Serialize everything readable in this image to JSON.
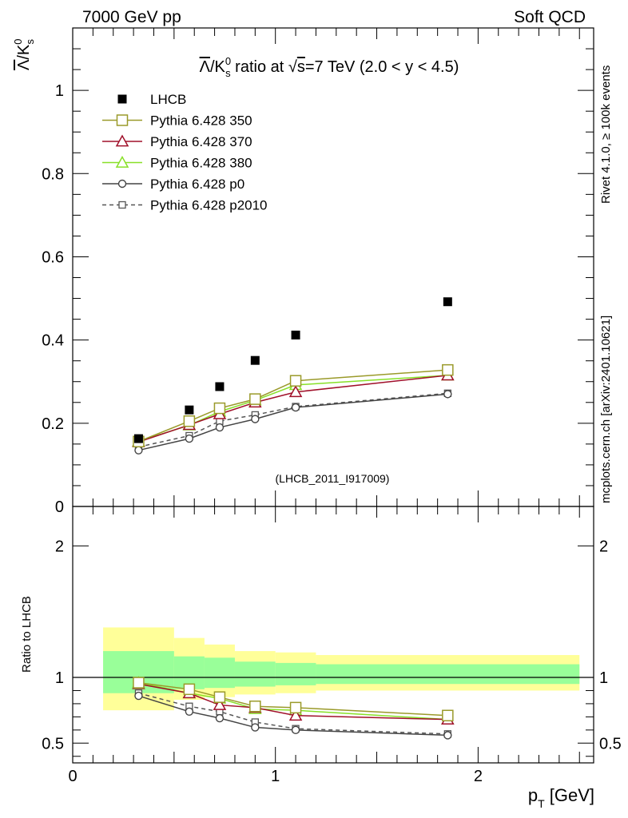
{
  "header": {
    "left": "7000 GeV pp",
    "right": "Soft QCD"
  },
  "side_text": {
    "rivet": "Rivet 4.1.0, ≥ 100k events",
    "mcplots": "mcplots.cern.ch [arXiv:2401.10621]"
  },
  "chart_data": [
    {
      "type": "scatter",
      "panel": "main",
      "title": "Λ̅/K⁰s ratio at √s=7 TeV (2.0 < y < 4.5)",
      "title_parts": {
        "lam": "Λ",
        "k": "/K",
        "k_sup": "0",
        "k_sub": "s",
        "mid": " ratio at ",
        "sqrt": "√",
        "s": "s",
        "tail": "=7 TeV (2.0 < y < 4.5)"
      },
      "ylabel_parts": {
        "lam": "Λ",
        "k": "/K",
        "k_sup": "0",
        "k_sub": "s"
      },
      "analysis_tag": "(LHCB_2011_I917009)",
      "xlim": [
        0,
        2.57
      ],
      "ylim": [
        0,
        1.15
      ],
      "y_ticks": [
        {
          "v": 0,
          "label": "0"
        },
        {
          "v": 0.2,
          "label": "0.2"
        },
        {
          "v": 0.4,
          "label": "0.4"
        },
        {
          "v": 0.6,
          "label": "0.6"
        },
        {
          "v": 0.8,
          "label": "0.8"
        },
        {
          "v": 1.0,
          "label": "1"
        }
      ],
      "x": [
        0.325,
        0.575,
        0.725,
        0.9,
        1.1,
        1.85
      ],
      "series": [
        {
          "name": "LHCB",
          "label": "LHCB",
          "values": [
            0.163,
            0.232,
            0.288,
            0.351,
            0.412,
            0.492
          ],
          "color": "#000000",
          "marker": "filled-square",
          "dash": false
        },
        {
          "name": "Pythia 6.428 350",
          "label": "Pythia 6.428 350",
          "values": [
            0.156,
            0.205,
            0.236,
            0.258,
            0.302,
            0.328
          ],
          "color": "#9a9a2a",
          "marker": "square",
          "dash": false
        },
        {
          "name": "Pythia 6.428 370",
          "label": "Pythia 6.428 370",
          "values": [
            0.155,
            0.196,
            0.222,
            0.25,
            0.275,
            0.315
          ],
          "color": "#a0102a",
          "marker": "triangle",
          "dash": false
        },
        {
          "name": "Pythia 6.428 380",
          "label": "Pythia 6.428 380",
          "values": [
            0.157,
            0.195,
            0.228,
            0.255,
            0.292,
            0.315
          ],
          "color": "#88e028",
          "marker": "triangle",
          "dash": false
        },
        {
          "name": "Pythia 6.428 p0",
          "label": "Pythia 6.428 p0",
          "values": [
            0.135,
            0.163,
            0.19,
            0.21,
            0.238,
            0.27
          ],
          "color": "#444444",
          "marker": "circle",
          "dash": false
        },
        {
          "name": "Pythia 6.428 p2010",
          "label": "Pythia 6.428 p2010",
          "values": [
            0.143,
            0.17,
            0.205,
            0.22,
            0.24,
            0.272
          ],
          "color": "#555555",
          "marker": "small-square",
          "dash": true
        }
      ]
    },
    {
      "type": "line",
      "panel": "ratio",
      "ylabel": "Ratio to LHCB",
      "xlabel_parts": {
        "p": "p",
        "sub": "T",
        "unit": " [GeV]"
      },
      "xlim": [
        0,
        2.57
      ],
      "ylim": [
        0.35,
        2.3
      ],
      "x_ticks": [
        {
          "v": 0,
          "label": "0"
        },
        {
          "v": 1,
          "label": "1"
        },
        {
          "v": 2,
          "label": "2"
        }
      ],
      "y_ticks": [
        {
          "v": 0.5,
          "label": "0.5"
        },
        {
          "v": 1,
          "label": "1"
        },
        {
          "v": 2,
          "label": "2"
        }
      ],
      "bins": [
        {
          "lo": 0.15,
          "hi": 0.5,
          "inner": [
            0.88,
            1.2
          ],
          "outer": [
            0.75,
            1.38
          ]
        },
        {
          "lo": 0.5,
          "hi": 0.65,
          "inner": [
            0.91,
            1.16
          ],
          "outer": [
            0.83,
            1.3
          ]
        },
        {
          "lo": 0.65,
          "hi": 0.8,
          "inner": [
            0.92,
            1.15
          ],
          "outer": [
            0.85,
            1.25
          ]
        },
        {
          "lo": 0.8,
          "hi": 1.0,
          "inner": [
            0.93,
            1.12
          ],
          "outer": [
            0.87,
            1.2
          ]
        },
        {
          "lo": 1.0,
          "hi": 1.2,
          "inner": [
            0.94,
            1.11
          ],
          "outer": [
            0.88,
            1.19
          ]
        },
        {
          "lo": 1.2,
          "hi": 2.5,
          "inner": [
            0.95,
            1.1
          ],
          "outer": [
            0.9,
            1.17
          ]
        }
      ],
      "x": [
        0.325,
        0.575,
        0.725,
        0.9,
        1.1,
        1.85
      ],
      "series": [
        {
          "name": "Pythia 6.428 350",
          "values": [
            0.96,
            0.91,
            0.85,
            0.78,
            0.77,
            0.71
          ],
          "color": "#9a9a2a",
          "marker": "square",
          "dash": false
        },
        {
          "name": "Pythia 6.428 370",
          "values": [
            0.95,
            0.88,
            0.79,
            0.77,
            0.71,
            0.68
          ],
          "color": "#a0102a",
          "marker": "triangle",
          "dash": false
        },
        {
          "name": "Pythia 6.428 380",
          "values": [
            0.96,
            0.88,
            0.84,
            0.76,
            0.75,
            0.68
          ],
          "color": "#88e028",
          "marker": "triangle",
          "dash": false
        },
        {
          "name": "Pythia 6.428 p0",
          "values": [
            0.86,
            0.74,
            0.69,
            0.62,
            0.6,
            0.56
          ],
          "color": "#444444",
          "marker": "circle",
          "dash": false
        },
        {
          "name": "Pythia 6.428 p2010",
          "values": [
            0.88,
            0.78,
            0.74,
            0.66,
            0.61,
            0.57
          ],
          "color": "#555555",
          "marker": "small-square",
          "dash": true
        }
      ]
    }
  ]
}
